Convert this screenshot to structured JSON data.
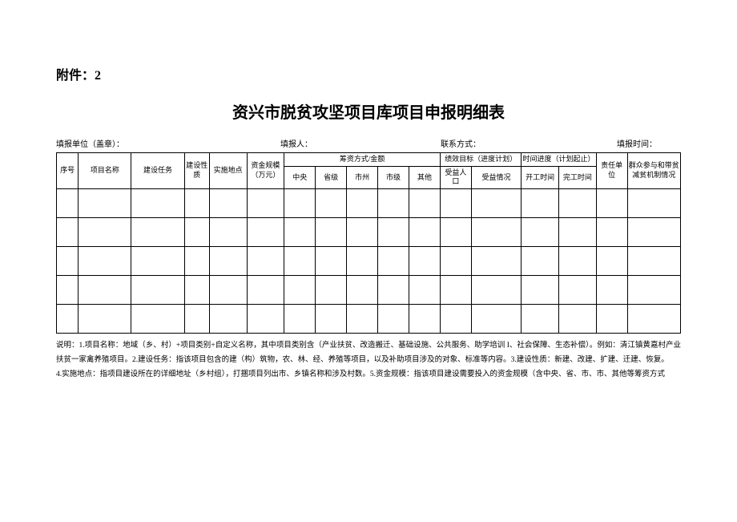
{
  "attachment_label": "附件：2",
  "title": "资兴市脱贫攻坚项目库项目申报明细表",
  "meta": {
    "unit_label": "填报单位（盖章）：",
    "reporter_label": "填报人：",
    "contact_label": "联系方式：",
    "time_label": "填报时间："
  },
  "headers": {
    "seq": "序号",
    "project_name": "项目名称",
    "task": "建设任务",
    "nature": "建设性质",
    "location": "实施地点",
    "fund_scale": "资金规模（万元）",
    "fund_method_group": "筹资方式/金额",
    "central": "中央",
    "province": "省级",
    "city_prefecture": "市州",
    "city": "市级",
    "other": "其他",
    "kpi_group": "绩效目标（进度计划）",
    "beneficiary": "受益人口",
    "benefit_situation": "受益情况",
    "time_progress_group": "时间进度（计划起止）",
    "start": "开工时间",
    "end": "完工时间",
    "resp_unit": "责任单位",
    "mass_participation": "群众参与和带贫减贫机制情况"
  },
  "table": {
    "border_color": "#000000",
    "empty_row_count": 5,
    "col_widths_pct": [
      3.5,
      8.5,
      8.5,
      4,
      6,
      6,
      5,
      5,
      5,
      5,
      5,
      5,
      8,
      6,
      6,
      5,
      8.5
    ]
  },
  "notes": {
    "line1": "说明：1.项目名称：地域（乡、村）+项目类别+自定义名称，其中项目类别含（产业扶贫、改造搬迁、基础设施、公共服务、助学培训 I、社会保障、生态补偿）。例如：清江镇黄嘉村产业扶贫一家禽养殖项目。2.建设任务：指该项目包含的建（构）筑物，农、林、经、养殖等项目，以及补助项目涉及的对象、标准等内容。3.建设性质：新建、改建、扩建、迁建、恢复。",
    "line2": "4.实施地点：指项目建设所在的详细地址（乡村组），打捆项目列出市、乡镇名称和涉及村数。5.资金规模：指该项目建设需要投入的资金规模（含中央、省、市、市、其他等筹资方式"
  }
}
